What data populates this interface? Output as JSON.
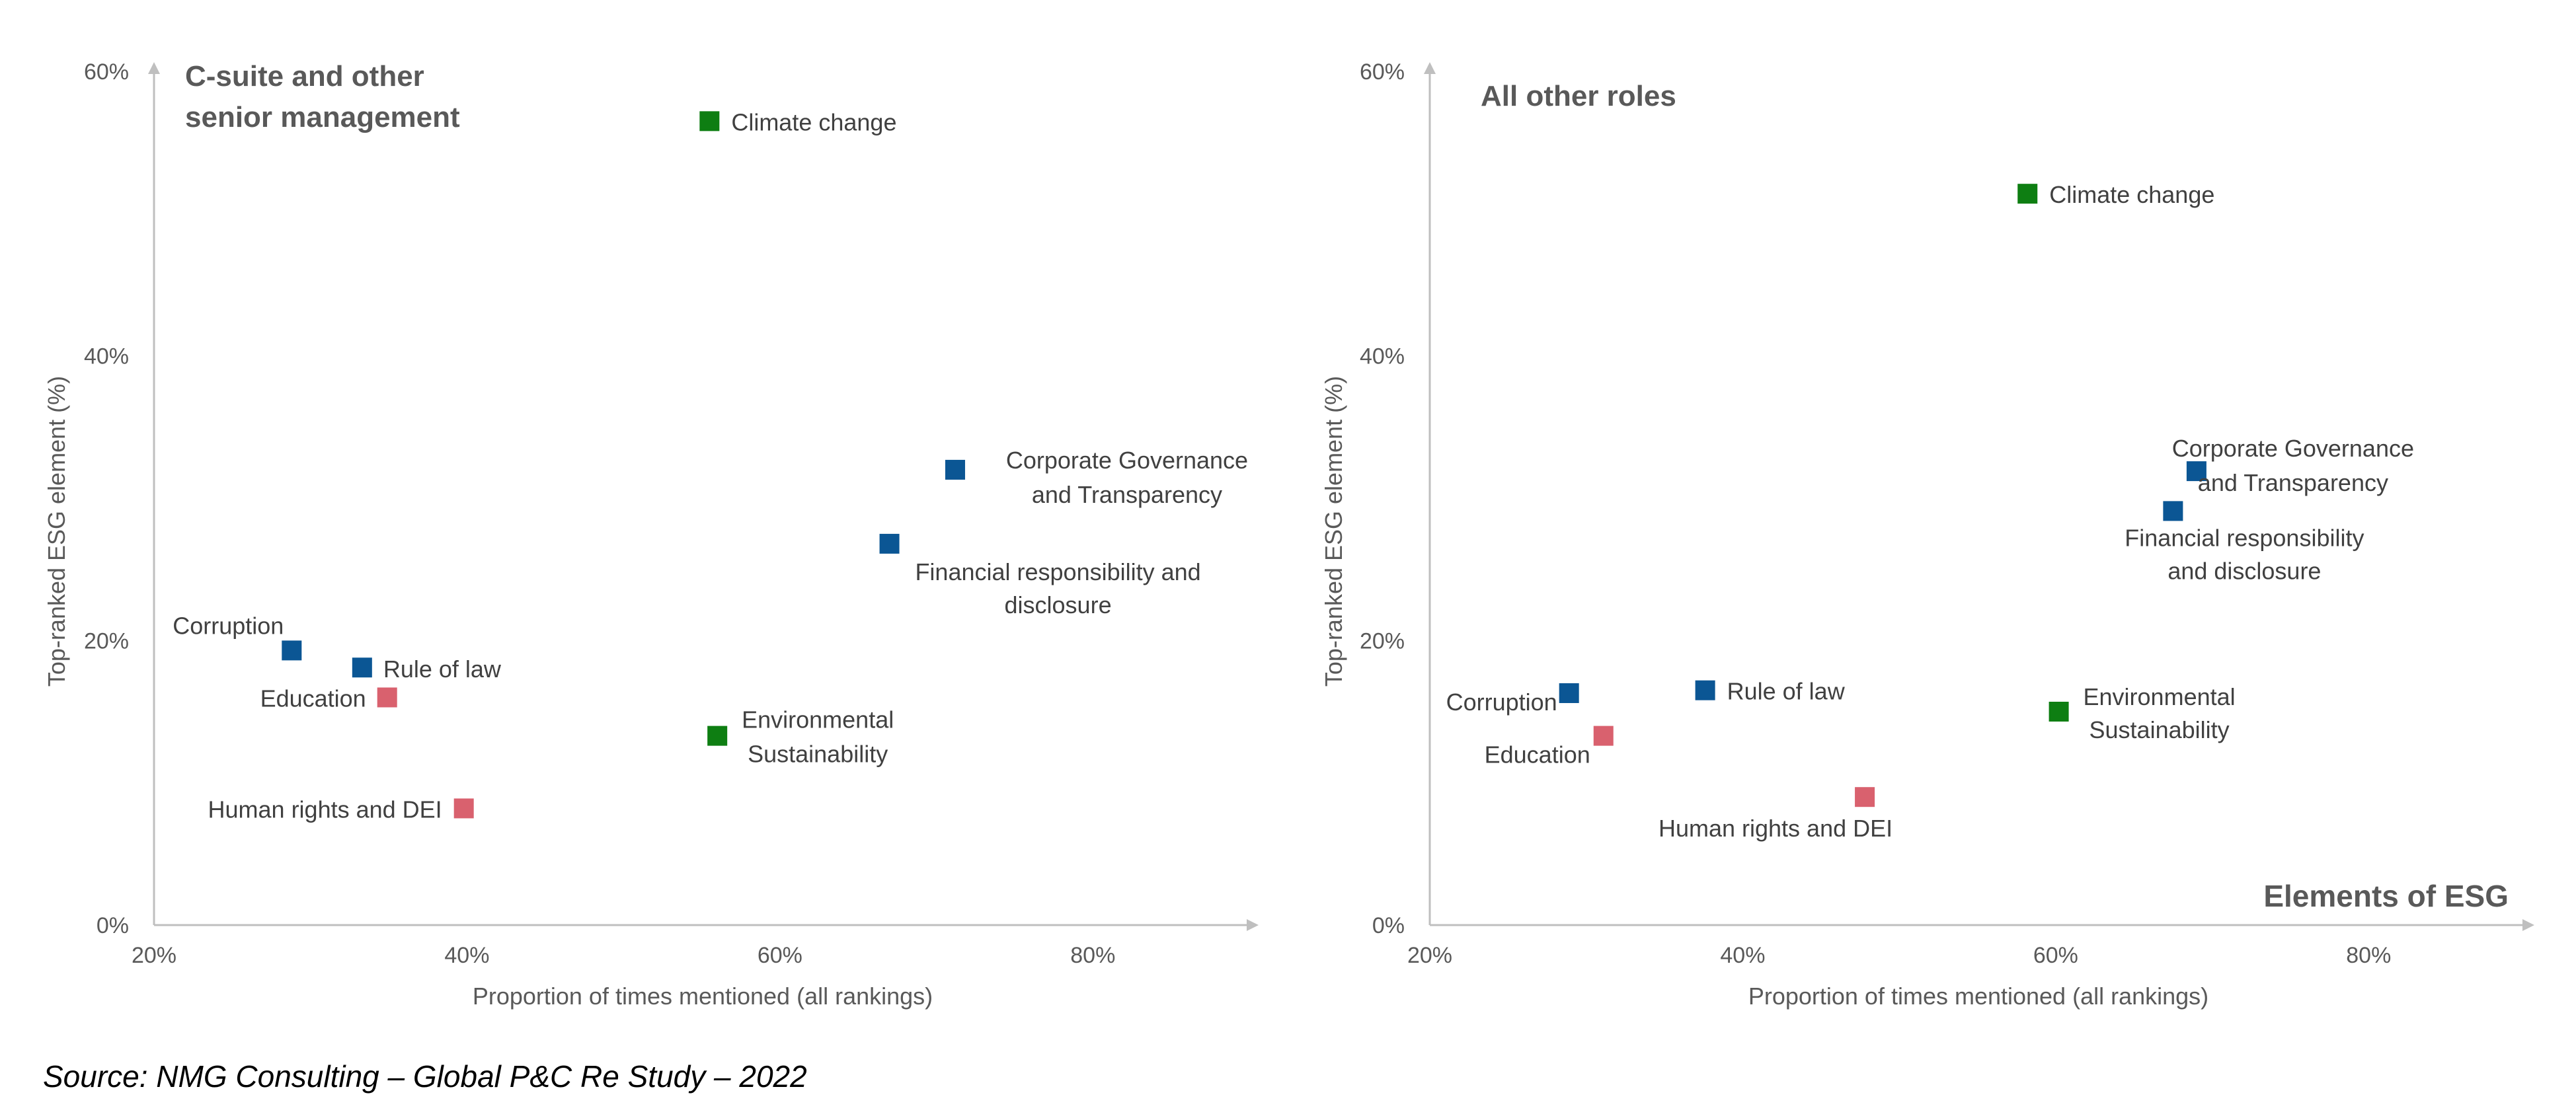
{
  "colors": {
    "Governance": "#0b5694",
    "Environmental": "#0e7e12",
    "Social": "#d9616e",
    "axis": "#bfbfbf",
    "text": "#595959"
  },
  "source": "Source: NMG Consulting – Global P&C Re Study – 2022",
  "chart_data": [
    {
      "type": "scatter",
      "title": "C-suite and other senior management",
      "xlabel": "Proportion of times mentioned (all rankings)",
      "ylabel": "Top-ranked ESG element (%)",
      "xlim": [
        20,
        90
      ],
      "ylim": [
        0,
        60
      ],
      "x_ticks": [
        "20%",
        "40%",
        "60%",
        "80%"
      ],
      "y_ticks": [
        "0%",
        "20%",
        "40%",
        "60%"
      ],
      "grid": false,
      "points": [
        {
          "name": "Climate change",
          "group": "Environmental",
          "x": 55.5,
          "y": 56.5
        },
        {
          "name": "Corporate Governance and Transparency",
          "group": "Governance",
          "x": 71.2,
          "y": 32.0
        },
        {
          "name": "Financial responsibility and disclosure",
          "group": "Governance",
          "x": 67.0,
          "y": 26.8
        },
        {
          "name": "Corruption",
          "group": "Governance",
          "x": 28.8,
          "y": 19.3
        },
        {
          "name": "Rule of law",
          "group": "Governance",
          "x": 33.3,
          "y": 18.1
        },
        {
          "name": "Education",
          "group": "Social",
          "x": 34.9,
          "y": 16.0
        },
        {
          "name": "Environmental Sustainability",
          "group": "Environmental",
          "x": 56.0,
          "y": 13.3
        },
        {
          "name": "Human rights and DEI",
          "group": "Social",
          "x": 39.8,
          "y": 8.2
        }
      ]
    },
    {
      "type": "scatter",
      "title": "All other roles",
      "xlabel": "Proportion of times mentioned (all rankings)",
      "ylabel": "Top-ranked ESG element (%)",
      "annotation": "Elements of ESG",
      "xlim": [
        20,
        90
      ],
      "ylim": [
        0,
        60
      ],
      "x_ticks": [
        "20%",
        "40%",
        "60%",
        "80%"
      ],
      "y_ticks": [
        "0%",
        "20%",
        "40%",
        "60%"
      ],
      "grid": false,
      "points": [
        {
          "name": "Climate change",
          "group": "Environmental",
          "x": 58.2,
          "y": 51.4
        },
        {
          "name": "Corporate Governance and Transparency",
          "group": "Governance",
          "x": 69.0,
          "y": 31.9
        },
        {
          "name": "Financial responsibility and disclosure",
          "group": "Governance",
          "x": 67.5,
          "y": 29.1
        },
        {
          "name": "Corruption",
          "group": "Governance",
          "x": 28.9,
          "y": 16.3
        },
        {
          "name": "Rule of law",
          "group": "Governance",
          "x": 37.6,
          "y": 16.5
        },
        {
          "name": "Education",
          "group": "Social",
          "x": 31.1,
          "y": 13.3
        },
        {
          "name": "Environmental Sustainability",
          "group": "Environmental",
          "x": 60.2,
          "y": 15.0
        },
        {
          "name": "Human rights and DEI",
          "group": "Social",
          "x": 47.8,
          "y": 9.0
        }
      ]
    }
  ]
}
